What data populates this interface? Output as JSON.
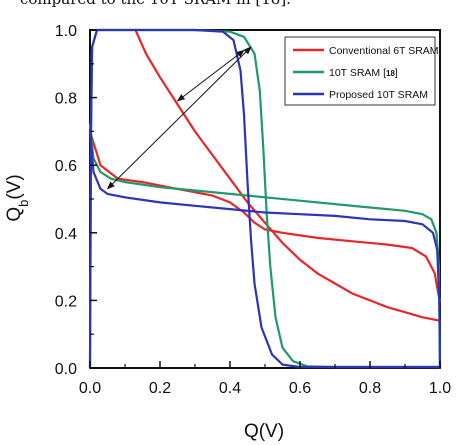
{
  "caption_fragment": "compared to the 10T SRAM in [18].",
  "chart_data": {
    "type": "line",
    "xlabel": "Q(V)",
    "ylabel_main": "Q",
    "ylabel_sub": "b",
    "ylabel_unit": "(V)",
    "xlim": [
      0.0,
      1.0
    ],
    "ylim": [
      0.0,
      1.0
    ],
    "xticks": [
      "0.0",
      "0.2",
      "0.4",
      "0.6",
      "0.8",
      "1.0"
    ],
    "yticks": [
      "0.0",
      "0.2",
      "0.4",
      "0.6",
      "0.8",
      "1.0"
    ],
    "grid": false,
    "legend_position": "top-right",
    "series": [
      {
        "name": "Conventional 6T SRAM",
        "color": "#e8262a",
        "curves": [
          [
            [
              0.13,
              1.0
            ],
            [
              0.16,
              0.93
            ],
            [
              0.2,
              0.86
            ],
            [
              0.25,
              0.78
            ],
            [
              0.3,
              0.7
            ],
            [
              0.35,
              0.63
            ],
            [
              0.4,
              0.56
            ],
            [
              0.45,
              0.49
            ],
            [
              0.5,
              0.43
            ],
            [
              0.55,
              0.37
            ],
            [
              0.6,
              0.32
            ],
            [
              0.65,
              0.28
            ],
            [
              0.7,
              0.25
            ],
            [
              0.75,
              0.22
            ],
            [
              0.8,
              0.2
            ],
            [
              0.85,
              0.18
            ],
            [
              0.9,
              0.165
            ],
            [
              0.95,
              0.15
            ],
            [
              1.0,
              0.14
            ]
          ],
          [
            [
              0.0,
              0.7
            ],
            [
              0.03,
              0.6
            ],
            [
              0.08,
              0.56
            ],
            [
              0.15,
              0.55
            ],
            [
              0.25,
              0.53
            ],
            [
              0.35,
              0.51
            ],
            [
              0.4,
              0.49
            ],
            [
              0.44,
              0.46
            ],
            [
              0.47,
              0.43
            ],
            [
              0.5,
              0.41
            ],
            [
              0.55,
              0.4
            ],
            [
              0.65,
              0.385
            ],
            [
              0.75,
              0.375
            ],
            [
              0.85,
              0.365
            ],
            [
              0.92,
              0.355
            ],
            [
              0.96,
              0.33
            ],
            [
              0.985,
              0.28
            ],
            [
              0.995,
              0.22
            ],
            [
              1.0,
              0.2
            ]
          ]
        ]
      },
      {
        "name": "10T SRAM",
        "legend_ref": "18",
        "color": "#1f9a6a",
        "curves": [
          [
            [
              0.0,
              0.72
            ],
            [
              0.01,
              0.62
            ],
            [
              0.03,
              0.58
            ],
            [
              0.06,
              0.56
            ],
            [
              0.1,
              0.55
            ],
            [
              0.2,
              0.535
            ],
            [
              0.3,
              0.525
            ],
            [
              0.4,
              0.515
            ],
            [
              0.5,
              0.505
            ],
            [
              0.6,
              0.495
            ],
            [
              0.7,
              0.485
            ],
            [
              0.8,
              0.475
            ],
            [
              0.9,
              0.465
            ],
            [
              0.95,
              0.455
            ],
            [
              0.975,
              0.44
            ],
            [
              0.99,
              0.4
            ],
            [
              0.997,
              0.3
            ],
            [
              1.0,
              0.0
            ]
          ],
          [
            [
              0.0,
              0.0
            ],
            [
              0.003,
              0.7
            ],
            [
              0.006,
              0.95
            ],
            [
              0.02,
              1.0
            ],
            [
              0.3,
              1.0
            ],
            [
              0.4,
              0.995
            ],
            [
              0.44,
              0.98
            ],
            [
              0.47,
              0.93
            ],
            [
              0.485,
              0.82
            ],
            [
              0.495,
              0.65
            ],
            [
              0.505,
              0.45
            ],
            [
              0.515,
              0.3
            ],
            [
              0.53,
              0.15
            ],
            [
              0.55,
              0.06
            ],
            [
              0.58,
              0.02
            ],
            [
              0.62,
              0.005
            ],
            [
              0.7,
              0.003
            ],
            [
              1.0,
              0.003
            ]
          ]
        ]
      },
      {
        "name": "Proposed 10T SRAM",
        "color": "#2b35b5",
        "curves": [
          [
            [
              0.0,
              0.7
            ],
            [
              0.01,
              0.58
            ],
            [
              0.03,
              0.53
            ],
            [
              0.05,
              0.515
            ],
            [
              0.1,
              0.505
            ],
            [
              0.2,
              0.49
            ],
            [
              0.3,
              0.48
            ],
            [
              0.4,
              0.47
            ],
            [
              0.5,
              0.46
            ],
            [
              0.6,
              0.455
            ],
            [
              0.7,
              0.45
            ],
            [
              0.8,
              0.44
            ],
            [
              0.9,
              0.435
            ],
            [
              0.95,
              0.425
            ],
            [
              0.98,
              0.4
            ],
            [
              0.992,
              0.35
            ],
            [
              0.998,
              0.2
            ],
            [
              1.0,
              0.0
            ]
          ],
          [
            [
              0.0,
              0.0
            ],
            [
              0.003,
              0.7
            ],
            [
              0.006,
              0.95
            ],
            [
              0.02,
              1.0
            ],
            [
              0.3,
              1.0
            ],
            [
              0.38,
              0.995
            ],
            [
              0.41,
              0.97
            ],
            [
              0.43,
              0.88
            ],
            [
              0.44,
              0.75
            ],
            [
              0.45,
              0.55
            ],
            [
              0.46,
              0.38
            ],
            [
              0.47,
              0.25
            ],
            [
              0.49,
              0.12
            ],
            [
              0.52,
              0.04
            ],
            [
              0.55,
              0.01
            ],
            [
              0.6,
              0.003
            ],
            [
              1.0,
              0.003
            ]
          ]
        ]
      }
    ],
    "annotations": [
      {
        "type": "double-arrow",
        "from": [
          0.05,
          0.53
        ],
        "to": [
          0.46,
          0.95
        ]
      },
      {
        "type": "double-arrow",
        "from": [
          0.25,
          0.79
        ],
        "to": [
          0.44,
          0.94
        ]
      }
    ]
  }
}
